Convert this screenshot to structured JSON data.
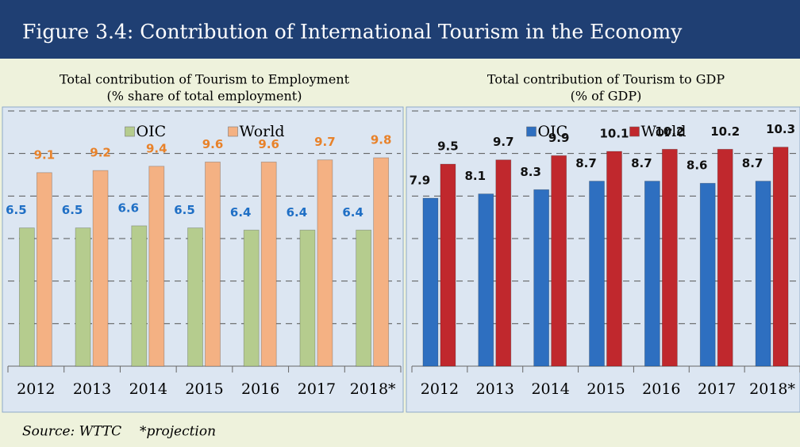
{
  "title": "Figure 3.4: Contribution of International Tourism in the Economy",
  "source": "Source: WTTC",
  "note": "*projection",
  "chart_data": [
    {
      "type": "bar",
      "subtitle": [
        "Total contribution of Tourism  to Employment",
        "(% share of total employment)"
      ],
      "categories": [
        "2012",
        "2013",
        "2014",
        "2015",
        "2016",
        "2017",
        "2018*"
      ],
      "series": [
        {
          "name": "OIC",
          "color": "#b5cc8e",
          "label_color": "#1f6fc5",
          "values": [
            6.5,
            6.5,
            6.6,
            6.5,
            6.4,
            6.4,
            6.4
          ]
        },
        {
          "name": "World",
          "color": "#f4b183",
          "label_color": "#e8822a",
          "values": [
            9.1,
            9.2,
            9.4,
            9.6,
            9.6,
            9.7,
            9.8
          ]
        }
      ],
      "ylim": [
        0,
        12
      ],
      "yticks": [
        2,
        4,
        6,
        8,
        10,
        12
      ],
      "grid": true
    },
    {
      "type": "bar",
      "subtitle": [
        "Total contribution of Tourism to GDP",
        "(% of GDP)"
      ],
      "categories": [
        "2012",
        "2013",
        "2014",
        "2015",
        "2016",
        "2017",
        "2018*"
      ],
      "series": [
        {
          "name": "OIC",
          "color": "#2e6fc0",
          "label_color": "#111111",
          "values": [
            7.9,
            8.1,
            8.3,
            8.7,
            8.7,
            8.6,
            8.7
          ]
        },
        {
          "name": "World",
          "color": "#c0282d",
          "label_color": "#111111",
          "values": [
            9.5,
            9.7,
            9.9,
            10.1,
            10.2,
            10.2,
            10.3
          ]
        }
      ],
      "ylim": [
        0,
        12
      ],
      "yticks": [
        2,
        4,
        6,
        8,
        10,
        12
      ],
      "grid": true
    }
  ]
}
